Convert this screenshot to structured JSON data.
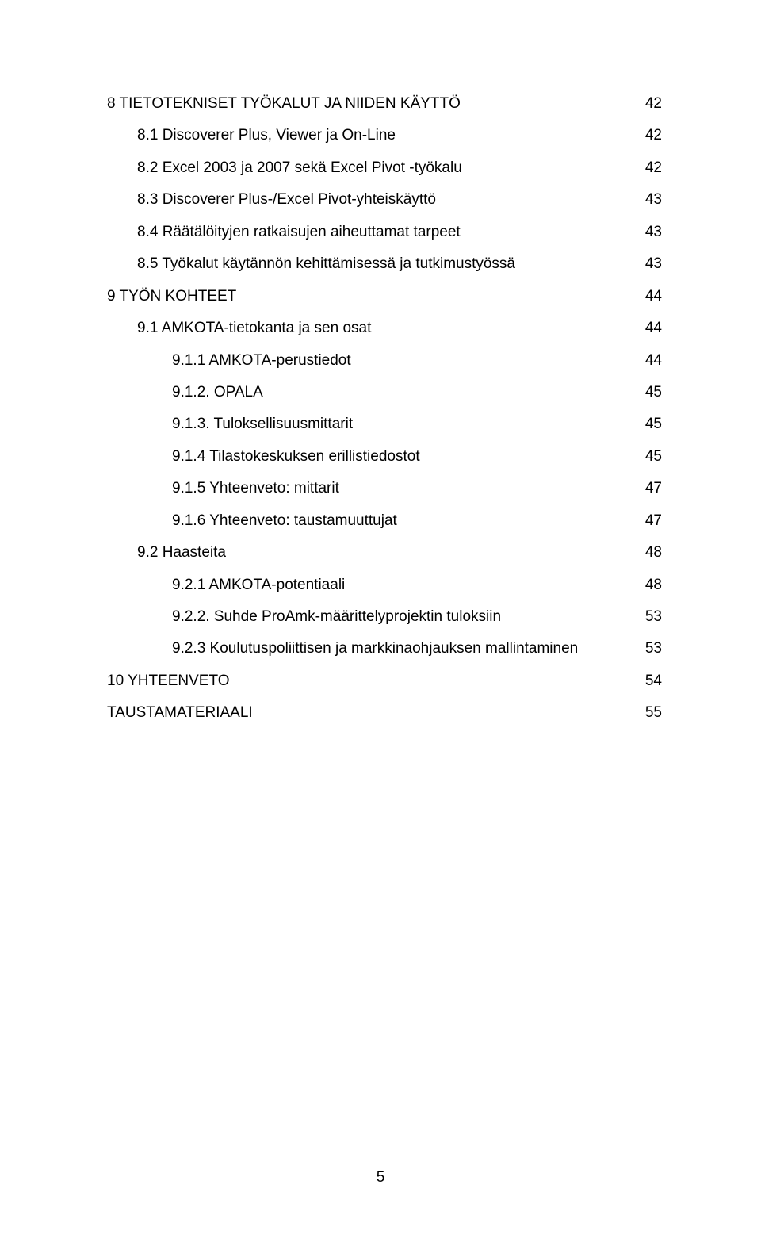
{
  "page_number": "5",
  "entries": [
    {
      "level": 0,
      "label": "8  TIETOTEKNISET TYÖKALUT JA NIIDEN KÄYTTÖ",
      "page": "42"
    },
    {
      "level": 1,
      "label": "8.1  Discoverer Plus, Viewer ja On-Line",
      "page": "42"
    },
    {
      "level": 1,
      "label": "8.2  Excel 2003 ja 2007 sekä Excel Pivot -työkalu",
      "page": "42"
    },
    {
      "level": 1,
      "label": "8.3  Discoverer Plus-/Excel Pivot-yhteiskäyttö",
      "page": "43"
    },
    {
      "level": 1,
      "label": "8.4  Räätälöityjen ratkaisujen aiheuttamat tarpeet",
      "page": "43"
    },
    {
      "level": 1,
      "label": "8.5  Työkalut käytännön kehittämisessä ja tutkimustyössä",
      "page": "43"
    },
    {
      "level": 0,
      "label": "9  TYÖN KOHTEET",
      "page": "44"
    },
    {
      "level": 1,
      "label": "9.1  AMKOTA-tietokanta ja sen osat",
      "page": "44"
    },
    {
      "level": 2,
      "label": "9.1.1  AMKOTA-perustiedot",
      "page": "44"
    },
    {
      "level": 2,
      "label": "9.1.2.  OPALA",
      "page": "45"
    },
    {
      "level": 2,
      "label": "9.1.3.  Tuloksellisuusmittarit",
      "page": "45"
    },
    {
      "level": 2,
      "label": "9.1.4  Tilastokeskuksen erillistiedostot",
      "page": "45"
    },
    {
      "level": 2,
      "label": "9.1.5  Yhteenveto: mittarit",
      "page": "47"
    },
    {
      "level": 2,
      "label": "9.1.6  Yhteenveto: taustamuuttujat",
      "page": "47"
    },
    {
      "level": 1,
      "label": "9.2  Haasteita",
      "page": "48"
    },
    {
      "level": 2,
      "label": "9.2.1  AMKOTA-potentiaali",
      "page": "48"
    },
    {
      "level": 2,
      "label": "9.2.2.  Suhde ProAmk-määrittelyprojektin tuloksiin",
      "page": "53"
    },
    {
      "level": 2,
      "label": "9.2.3  Koulutuspoliittisen ja markkinaohjauksen mallintaminen",
      "page": "53"
    },
    {
      "level": 0,
      "label": "10  YHTEENVETO",
      "page": "54"
    },
    {
      "level": 0,
      "label": "TAUSTAMATERIAALI",
      "page": "55"
    }
  ]
}
